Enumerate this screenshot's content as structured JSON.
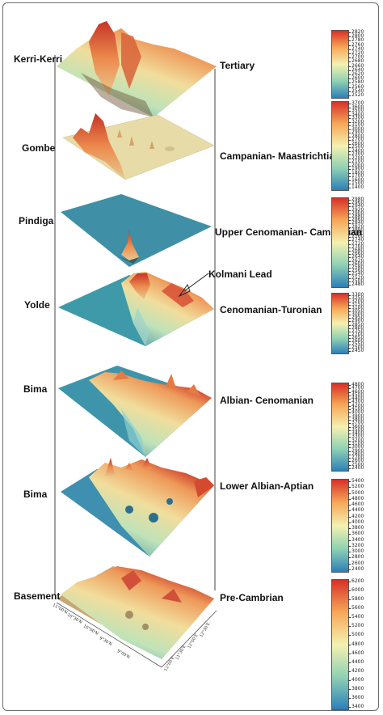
{
  "layers": [
    {
      "left_label": "Kerri-Kerri",
      "right_label": "Tertiary",
      "colorbar_ticks": [
        "2820",
        "2800",
        "2780",
        "2760",
        "2740",
        "2720",
        "2700",
        "2680",
        "2660",
        "2640",
        "2620",
        "2600",
        "2580",
        "2560",
        "2540",
        "2520"
      ]
    },
    {
      "left_label": "Gombe",
      "right_label": "Campanian- Maastrichtian",
      "colorbar_ticks": [
        "3700",
        "3600",
        "3500",
        "3400",
        "3300",
        "3200",
        "3100",
        "3000",
        "2900",
        "2800",
        "2700",
        "2600",
        "2500",
        "2400",
        "2300",
        "2200",
        "2100",
        "2000",
        "1900",
        "1800",
        "1700",
        "1600",
        "1500",
        "1400"
      ]
    },
    {
      "left_label": "Pindiga",
      "right_label": "Upper Cenomanian- Campanian",
      "colorbar_ticks": [
        "2980",
        "2960",
        "2940",
        "2920",
        "2900",
        "2880",
        "2860",
        "2840",
        "2820",
        "2800",
        "2780",
        "2760",
        "2740",
        "2720",
        "2700",
        "2680",
        "2660",
        "2640",
        "2620",
        "2600",
        "2580",
        "2560",
        "2540",
        "2520",
        "2500",
        "2480"
      ]
    },
    {
      "left_label": "Yolde",
      "right_label": "Cenomanian-Turonian",
      "colorbar_ticks": [
        "3300",
        "3250",
        "3200",
        "3150",
        "3100",
        "3050",
        "3000",
        "2950",
        "2900",
        "2850",
        "2800",
        "2750",
        "2700",
        "2650",
        "2600",
        "2550",
        "2500",
        "2450"
      ]
    },
    {
      "left_label": "Bima",
      "right_label": "Albian- Cenomanian",
      "colorbar_ticks": [
        "4800",
        "4700",
        "4600",
        "4500",
        "4400",
        "4300",
        "4200",
        "4100",
        "4000",
        "3900",
        "3800",
        "3700",
        "3600",
        "3500",
        "3400",
        "3300",
        "3200",
        "3100",
        "3000",
        "2900",
        "2800",
        "2700",
        "2600",
        "2500",
        "2400"
      ]
    },
    {
      "left_label": "Bima",
      "right_label": "Lower Albian-Aptian",
      "colorbar_ticks": [
        "5400",
        "5200",
        "5000",
        "4800",
        "4600",
        "4400",
        "4200",
        "4000",
        "3800",
        "3600",
        "3400",
        "3200",
        "3000",
        "2800",
        "2600",
        "2400"
      ]
    },
    {
      "left_label": "Basement",
      "right_label": "Pre-Cambrian",
      "colorbar_ticks": [
        "6200",
        "6000",
        "5800",
        "5600",
        "5400",
        "5200",
        "5000",
        "4800",
        "4600",
        "4400",
        "4200",
        "4000",
        "3800",
        "3600",
        "3400"
      ]
    }
  ],
  "annotation": "Kolmani Lead",
  "axis_ticks_left": [
    "11°00'N",
    "10°30'N",
    "10°00'N",
    "9°30'N",
    "9°00'N"
  ],
  "axis_ticks_right": [
    "11°00'E",
    "11°30'E",
    "12°00'E",
    "12°30'E"
  ],
  "colors": {
    "low": "#2f8fb5",
    "mid": "#f3e9a6",
    "high": "#d9452c",
    "flat_gombe": "#e7dca8",
    "flat_pindiga": "#3f8fa6"
  }
}
